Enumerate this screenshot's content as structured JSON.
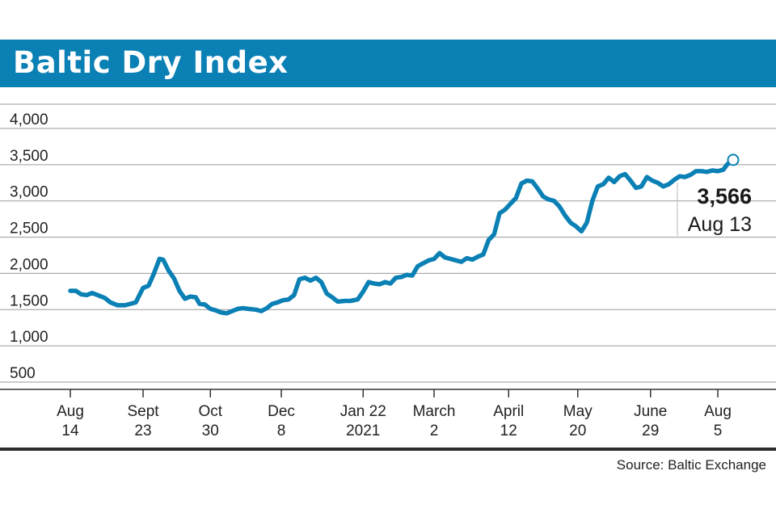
{
  "header": {
    "title": "Baltic Dry Index"
  },
  "source": "Source: Baltic Exchange",
  "colors": {
    "header_bg": "#0a80b4",
    "line": "#0a80b4",
    "grid": "#9a9a9a",
    "axis": "#333333"
  },
  "chart_data": {
    "type": "line",
    "title": "Baltic Dry Index",
    "xlabel": "",
    "ylabel": "",
    "ylim": [
      300,
      4300
    ],
    "yticks": [
      500,
      1000,
      1500,
      2000,
      2500,
      3000,
      3500,
      4000
    ],
    "ytick_labels": [
      "500",
      "1,000",
      "1,500",
      "2,000",
      "2,500",
      "3,000",
      "3,500",
      "4,000"
    ],
    "xticks": [
      {
        "label1": "Aug",
        "label2": "14",
        "date": "2020-08-14"
      },
      {
        "label1": "Sept",
        "label2": "23",
        "date": "2020-09-23"
      },
      {
        "label1": "Oct",
        "label2": "30",
        "date": "2020-10-30"
      },
      {
        "label1": "Dec",
        "label2": "8",
        "date": "2020-12-08"
      },
      {
        "label1": "Jan 22",
        "label2": "2021",
        "date": "2021-01-22"
      },
      {
        "label1": "March",
        "label2": "2",
        "date": "2021-03-02"
      },
      {
        "label1": "April",
        "label2": "12",
        "date": "2021-04-12"
      },
      {
        "label1": "May",
        "label2": "20",
        "date": "2021-05-20"
      },
      {
        "label1": "June",
        "label2": "29",
        "date": "2021-06-29"
      },
      {
        "label1": "Aug",
        "label2": "5",
        "date": "2021-08-05"
      }
    ],
    "grid": true,
    "series": [
      {
        "points": [
          [
            "2020-08-14",
            1760
          ],
          [
            "2020-08-17",
            1760
          ],
          [
            "2020-08-20",
            1710
          ],
          [
            "2020-08-23",
            1700
          ],
          [
            "2020-08-26",
            1730
          ],
          [
            "2020-08-29",
            1700
          ],
          [
            "2020-09-02",
            1660
          ],
          [
            "2020-09-05",
            1600
          ],
          [
            "2020-09-09",
            1560
          ],
          [
            "2020-09-13",
            1560
          ],
          [
            "2020-09-16",
            1580
          ],
          [
            "2020-09-19",
            1600
          ],
          [
            "2020-09-21",
            1700
          ],
          [
            "2020-09-23",
            1800
          ],
          [
            "2020-09-26",
            1830
          ],
          [
            "2020-09-29",
            2000
          ],
          [
            "2020-10-02",
            2200
          ],
          [
            "2020-10-04",
            2190
          ],
          [
            "2020-10-07",
            2040
          ],
          [
            "2020-10-10",
            1930
          ],
          [
            "2020-10-13",
            1760
          ],
          [
            "2020-10-16",
            1650
          ],
          [
            "2020-10-19",
            1680
          ],
          [
            "2020-10-22",
            1670
          ],
          [
            "2020-10-24",
            1580
          ],
          [
            "2020-10-27",
            1570
          ],
          [
            "2020-10-30",
            1510
          ],
          [
            "2020-11-02",
            1490
          ],
          [
            "2020-11-05",
            1460
          ],
          [
            "2020-11-08",
            1450
          ],
          [
            "2020-11-11",
            1480
          ],
          [
            "2020-11-14",
            1510
          ],
          [
            "2020-11-17",
            1520
          ],
          [
            "2020-11-20",
            1510
          ],
          [
            "2020-11-24",
            1500
          ],
          [
            "2020-11-27",
            1480
          ],
          [
            "2020-11-30",
            1520
          ],
          [
            "2020-12-03",
            1580
          ],
          [
            "2020-12-06",
            1600
          ],
          [
            "2020-12-09",
            1630
          ],
          [
            "2020-12-12",
            1640
          ],
          [
            "2020-12-15",
            1700
          ],
          [
            "2020-12-18",
            1920
          ],
          [
            "2020-12-21",
            1940
          ],
          [
            "2020-12-24",
            1900
          ],
          [
            "2020-12-27",
            1940
          ],
          [
            "2020-12-30",
            1880
          ],
          [
            "2021-01-02",
            1720
          ],
          [
            "2021-01-05",
            1670
          ],
          [
            "2021-01-08",
            1610
          ],
          [
            "2021-01-12",
            1620
          ],
          [
            "2021-01-15",
            1620
          ],
          [
            "2021-01-19",
            1640
          ],
          [
            "2021-01-22",
            1750
          ],
          [
            "2021-01-25",
            1880
          ],
          [
            "2021-01-28",
            1860
          ],
          [
            "2021-01-31",
            1850
          ],
          [
            "2021-02-03",
            1880
          ],
          [
            "2021-02-06",
            1860
          ],
          [
            "2021-02-09",
            1940
          ],
          [
            "2021-02-12",
            1950
          ],
          [
            "2021-02-15",
            1980
          ],
          [
            "2021-02-18",
            1970
          ],
          [
            "2021-02-21",
            2100
          ],
          [
            "2021-02-24",
            2140
          ],
          [
            "2021-02-27",
            2180
          ],
          [
            "2021-03-02",
            2200
          ],
          [
            "2021-03-05",
            2280
          ],
          [
            "2021-03-08",
            2220
          ],
          [
            "2021-03-11",
            2200
          ],
          [
            "2021-03-14",
            2180
          ],
          [
            "2021-03-17",
            2160
          ],
          [
            "2021-03-20",
            2210
          ],
          [
            "2021-03-23",
            2190
          ],
          [
            "2021-03-26",
            2230
          ],
          [
            "2021-03-29",
            2260
          ],
          [
            "2021-04-01",
            2460
          ],
          [
            "2021-04-04",
            2540
          ],
          [
            "2021-04-07",
            2830
          ],
          [
            "2021-04-10",
            2880
          ],
          [
            "2021-04-13",
            2960
          ],
          [
            "2021-04-16",
            3040
          ],
          [
            "2021-04-19",
            3240
          ],
          [
            "2021-04-22",
            3280
          ],
          [
            "2021-04-25",
            3270
          ],
          [
            "2021-04-28",
            3170
          ],
          [
            "2021-05-01",
            3060
          ],
          [
            "2021-05-04",
            3020
          ],
          [
            "2021-05-07",
            3000
          ],
          [
            "2021-05-10",
            2920
          ],
          [
            "2021-05-13",
            2800
          ],
          [
            "2021-05-16",
            2700
          ],
          [
            "2021-05-19",
            2650
          ],
          [
            "2021-05-22",
            2580
          ],
          [
            "2021-05-25",
            2700
          ],
          [
            "2021-05-28",
            3000
          ],
          [
            "2021-05-31",
            3200
          ],
          [
            "2021-06-03",
            3230
          ],
          [
            "2021-06-06",
            3320
          ],
          [
            "2021-06-09",
            3260
          ],
          [
            "2021-06-12",
            3340
          ],
          [
            "2021-06-15",
            3370
          ],
          [
            "2021-06-18",
            3280
          ],
          [
            "2021-06-21",
            3180
          ],
          [
            "2021-06-24",
            3200
          ],
          [
            "2021-06-27",
            3330
          ],
          [
            "2021-06-30",
            3280
          ],
          [
            "2021-07-03",
            3250
          ],
          [
            "2021-07-06",
            3200
          ],
          [
            "2021-07-09",
            3230
          ],
          [
            "2021-07-12",
            3290
          ],
          [
            "2021-07-15",
            3340
          ],
          [
            "2021-07-18",
            3330
          ],
          [
            "2021-07-21",
            3360
          ],
          [
            "2021-07-24",
            3410
          ],
          [
            "2021-07-27",
            3410
          ],
          [
            "2021-07-30",
            3400
          ],
          [
            "2021-08-02",
            3420
          ],
          [
            "2021-08-05",
            3410
          ],
          [
            "2021-08-08",
            3430
          ],
          [
            "2021-08-10",
            3500
          ],
          [
            "2021-08-13",
            3566
          ]
        ]
      }
    ],
    "annotation": {
      "value_label": "3,566",
      "date_label": "Aug 13",
      "date": "2021-08-13",
      "value": 3566
    }
  }
}
